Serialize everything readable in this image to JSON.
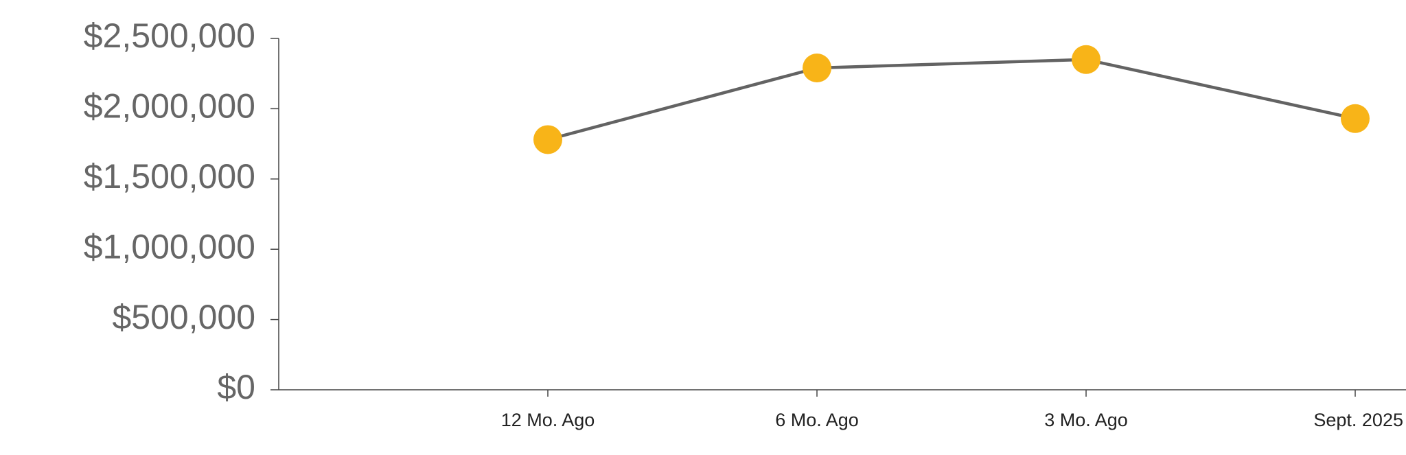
{
  "chart_data": {
    "type": "line",
    "categories": [
      "12 Mo. Ago",
      "6 Mo. Ago",
      "3 Mo. Ago",
      "Sept. 2025"
    ],
    "series": [
      {
        "color": "#636363",
        "marker_color": "#f8b418",
        "values": [
          1780000,
          2290000,
          2350000,
          1930000
        ]
      }
    ],
    "ylim": [
      0,
      2500000
    ],
    "yticks": [
      {
        "value": 0,
        "label": "$0"
      },
      {
        "value": 500000,
        "label": "$500,000"
      },
      {
        "value": 1000000,
        "label": "$1,000,000"
      },
      {
        "value": 1500000,
        "label": "$1,500,000"
      },
      {
        "value": 2000000,
        "label": "$2,000,000"
      },
      {
        "value": 2500000,
        "label": "$2,500,000"
      }
    ],
    "grid": false
  }
}
